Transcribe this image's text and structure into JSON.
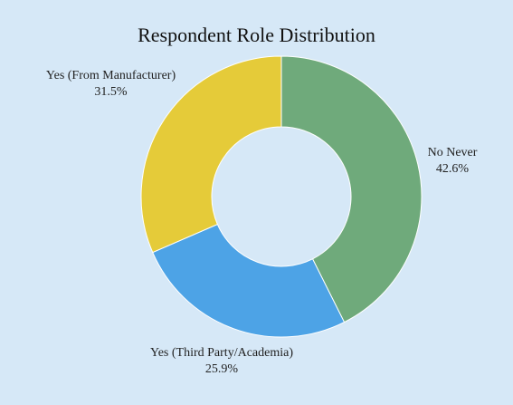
{
  "chart_data": {
    "type": "pie",
    "title": "Respondent Role Distribution",
    "donut": true,
    "slices": [
      {
        "label": "No Never",
        "value": 42.6,
        "value_label": "42.6%",
        "color": "#6faa7b"
      },
      {
        "label": "Yes (Third Party/Academia)",
        "value": 25.9,
        "value_label": "25.9%",
        "color": "#4da3e6"
      },
      {
        "label": "Yes (From Manufacturer)",
        "value": 31.5,
        "value_label": "31.5%",
        "color": "#e5cb39"
      }
    ],
    "background": "#d6e8f7"
  }
}
